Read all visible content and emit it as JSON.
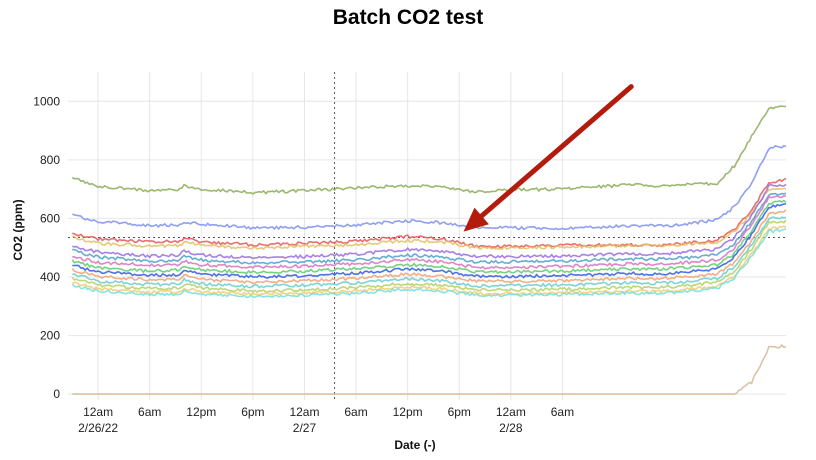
{
  "chart_data": {
    "type": "line",
    "title": "Batch CO2 test",
    "xlabel": "Date (-)",
    "ylabel": "CO2 (ppm)",
    "ylim": [
      -20,
      1100
    ],
    "xlim_hours": [
      -3.5,
      80
    ],
    "grid": true,
    "legend": "none",
    "x_tick_labels": [
      {
        "hours": 0,
        "label": "12am",
        "date": "2/26/22"
      },
      {
        "hours": 6,
        "label": "6am",
        "date": ""
      },
      {
        "hours": 12,
        "label": "12pm",
        "date": ""
      },
      {
        "hours": 18,
        "label": "6pm",
        "date": ""
      },
      {
        "hours": 24,
        "label": "12am",
        "date": "2/27"
      },
      {
        "hours": 30,
        "label": "6am",
        "date": ""
      },
      {
        "hours": 36,
        "label": "12pm",
        "date": ""
      },
      {
        "hours": 42,
        "label": "6pm",
        "date": ""
      },
      {
        "hours": 48,
        "label": "12am",
        "date": "2/28"
      },
      {
        "hours": 54,
        "label": "6am",
        "date": ""
      }
    ],
    "y_ticks": [
      0,
      200,
      400,
      600,
      800,
      1000
    ],
    "reference_lines": {
      "vertical_hours": 27.5,
      "horizontal_ppm": 535
    },
    "annotation": {
      "type": "arrow",
      "color": "#b31b0c",
      "from_hours": 62,
      "from_ppm": 1050,
      "to_hours": 42.5,
      "to_ppm": 555
    },
    "series_template": {
      "hours": [
        -3,
        0,
        6,
        9.5,
        10,
        12,
        18,
        24,
        30,
        36,
        40,
        44,
        48,
        54,
        62,
        64,
        66,
        68,
        72,
        74,
        76,
        78,
        80
      ]
    },
    "series": [
      {
        "color": "#8aab55",
        "values": [
          740,
          710,
          695,
          700,
          712,
          700,
          688,
          695,
          705,
          712,
          708,
          690,
          698,
          700,
          715,
          712,
          710,
          715,
          720,
          780,
          880,
          975,
          980
        ]
      },
      {
        "color": "#7b8ef0",
        "values": [
          610,
          590,
          575,
          578,
          590,
          580,
          568,
          570,
          578,
          592,
          585,
          570,
          568,
          565,
          575,
          575,
          575,
          580,
          595,
          640,
          720,
          840,
          848
        ]
      },
      {
        "color": "#e85555",
        "values": [
          550,
          530,
          520,
          522,
          535,
          520,
          510,
          515,
          522,
          538,
          530,
          505,
          505,
          508,
          510,
          508,
          510,
          515,
          525,
          560,
          630,
          720,
          735
        ]
      },
      {
        "color": "#e0c060",
        "values": [
          535,
          515,
          505,
          508,
          520,
          508,
          498,
          505,
          510,
          525,
          520,
          500,
          500,
          502,
          508,
          506,
          508,
          512,
          520,
          555,
          620,
          700,
          705
        ]
      },
      {
        "color": "#9a6adf",
        "values": [
          505,
          485,
          472,
          475,
          490,
          475,
          465,
          470,
          478,
          495,
          488,
          470,
          470,
          472,
          480,
          478,
          480,
          485,
          495,
          535,
          610,
          710,
          715
        ]
      },
      {
        "color": "#4aa0c8",
        "values": [
          490,
          468,
          455,
          458,
          470,
          458,
          448,
          452,
          458,
          475,
          468,
          450,
          452,
          455,
          462,
          460,
          462,
          465,
          475,
          515,
          590,
          680,
          690
        ]
      },
      {
        "color": "#d870c0",
        "values": [
          470,
          450,
          440,
          442,
          455,
          442,
          432,
          438,
          444,
          460,
          452,
          432,
          432,
          436,
          445,
          443,
          445,
          448,
          458,
          500,
          580,
          670,
          675
        ]
      },
      {
        "color": "#5acb6a",
        "values": [
          455,
          432,
          420,
          424,
          438,
          425,
          415,
          420,
          428,
          442,
          436,
          418,
          418,
          420,
          428,
          426,
          428,
          432,
          442,
          480,
          560,
          650,
          660
        ]
      },
      {
        "color": "#2b5be0",
        "values": [
          440,
          418,
          405,
          408,
          422,
          410,
          400,
          404,
          412,
          428,
          420,
          402,
          402,
          405,
          412,
          410,
          412,
          416,
          428,
          470,
          545,
          640,
          650
        ]
      },
      {
        "color": "#f0a070",
        "values": [
          425,
          402,
          390,
          392,
          405,
          393,
          382,
          388,
          396,
          410,
          402,
          386,
          385,
          388,
          396,
          394,
          396,
          400,
          410,
          450,
          525,
          615,
          625
        ]
      },
      {
        "color": "#66cccc",
        "values": [
          410,
          386,
          374,
          376,
          390,
          377,
          368,
          372,
          380,
          394,
          386,
          370,
          370,
          373,
          380,
          378,
          380,
          384,
          395,
          435,
          510,
          600,
          605
        ]
      },
      {
        "color": "#b0d060",
        "values": [
          395,
          372,
          360,
          362,
          375,
          362,
          352,
          356,
          364,
          378,
          372,
          356,
          356,
          358,
          365,
          363,
          365,
          370,
          382,
          420,
          495,
          585,
          590
        ]
      },
      {
        "color": "#f6c870",
        "values": [
          380,
          360,
          348,
          350,
          362,
          350,
          342,
          345,
          352,
          366,
          360,
          344,
          344,
          346,
          352,
          350,
          352,
          356,
          368,
          405,
          478,
          565,
          570
        ]
      },
      {
        "color": "#70e0d8",
        "values": [
          372,
          352,
          340,
          342,
          354,
          342,
          334,
          338,
          345,
          358,
          352,
          338,
          338,
          340,
          346,
          344,
          346,
          350,
          362,
          398,
          470,
          555,
          560
        ]
      },
      {
        "color": "#d4b896",
        "values": [
          0,
          0,
          0,
          0,
          0,
          0,
          0,
          0,
          0,
          0,
          0,
          0,
          0,
          0,
          0,
          0,
          0,
          0,
          0,
          0,
          40,
          160,
          165
        ]
      }
    ]
  }
}
